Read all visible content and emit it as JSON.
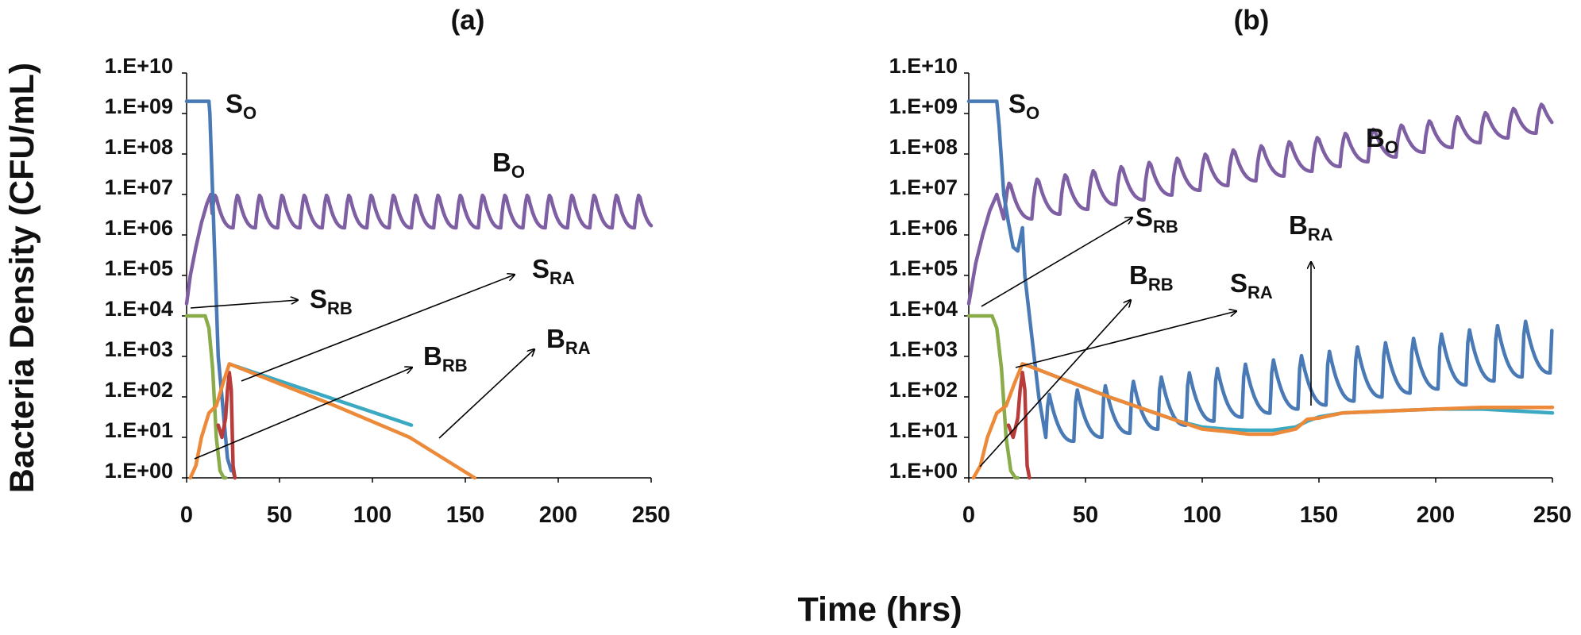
{
  "figure": {
    "ylabel": "Bacteria Density (CFU/mL)",
    "xlabel": "Time (hrs)"
  },
  "chart_data": [
    {
      "type": "line",
      "title": "(a)",
      "xlabel": "Time (hrs)",
      "ylabel": "Bacteria Density (CFU/mL)",
      "xlim": [
        0,
        250
      ],
      "ylim": [
        1,
        10000000000
      ],
      "yscale": "log",
      "xticks": [
        "0",
        "50",
        "100",
        "150",
        "200",
        "250"
      ],
      "yticks": [
        "1.E+00",
        "1.E+01",
        "1.E+02",
        "1.E+03",
        "1.E+04",
        "1.E+05",
        "1.E+06",
        "1.E+07",
        "1.E+08",
        "1.E+09",
        "1.E+10"
      ],
      "grid": false,
      "series_colors": {
        "SO": "#4a7ab5",
        "BO": "#7f5fa3",
        "SRB": "#8aab4a",
        "BRB": "#b83c3a",
        "SRA": "#3aa9c1",
        "BRA": "#ec8a3a"
      },
      "series": [
        {
          "id": "SO",
          "x": [
            0,
            12,
            12.5,
            14,
            17,
            21,
            22,
            24,
            25,
            26
          ],
          "y": [
            2000000000,
            2000000000,
            1000000000,
            10000000,
            1000,
            10,
            3,
            1.5,
            1.5,
            1
          ]
        },
        {
          "id": "BO",
          "x": [
            0,
            2,
            5,
            8,
            11,
            13
          ],
          "y": [
            20000,
            100000,
            500000,
            2000000,
            6000000,
            10000000
          ],
          "periodic": {
            "period": 12,
            "max": 10000000,
            "min": 1500000
          }
        },
        {
          "id": "SRB",
          "x": [
            0,
            10,
            12,
            14,
            16,
            18,
            20,
            21
          ],
          "y": [
            10000,
            10000,
            5000,
            500,
            10,
            1.5,
            1,
            1
          ]
        },
        {
          "id": "BRB",
          "x": [
            17,
            19,
            21,
            22,
            23,
            24,
            25,
            26
          ],
          "y": [
            20,
            10,
            30,
            150,
            400,
            150,
            2,
            1
          ]
        },
        {
          "id": "SRA",
          "x": [
            23,
            25,
            121
          ],
          "y": [
            650,
            600,
            20
          ]
        },
        {
          "id": "BRA",
          "x": [
            2,
            5,
            8,
            12,
            16,
            20,
            23,
            25,
            80,
            120,
            155
          ],
          "y": [
            1,
            2,
            10,
            40,
            60,
            250,
            650,
            600,
            60,
            10,
            1
          ]
        }
      ],
      "annotations": [
        {
          "label": "S",
          "sub": "O"
        },
        {
          "label": "B",
          "sub": "O"
        },
        {
          "label": "S",
          "sub": "RB"
        },
        {
          "label": "S",
          "sub": "RA"
        },
        {
          "label": "B",
          "sub": "RB"
        },
        {
          "label": "B",
          "sub": "RA"
        }
      ]
    },
    {
      "type": "line",
      "title": "(b)",
      "xlabel": "Time (hrs)",
      "ylabel": "Bacteria Density (CFU/mL)",
      "xlim": [
        0,
        250
      ],
      "ylim": [
        1,
        10000000000
      ],
      "yscale": "log",
      "xticks": [
        "0",
        "50",
        "100",
        "150",
        "200",
        "250"
      ],
      "yticks": [
        "1.E+00",
        "1.E+01",
        "1.E+02",
        "1.E+03",
        "1.E+04",
        "1.E+05",
        "1.E+06",
        "1.E+07",
        "1.E+08",
        "1.E+09",
        "1.E+10"
      ],
      "grid": false,
      "series_colors": {
        "SO": "#4a7ab5",
        "BO": "#7f5fa3",
        "SRB": "#8aab4a",
        "BRB": "#b83c3a",
        "SRA": "#3aa9c1",
        "BRA": "#ec8a3a"
      },
      "series": [
        {
          "id": "SO",
          "x": [
            0,
            12,
            13,
            15,
            17,
            19,
            21,
            22,
            23,
            24,
            26,
            28,
            30,
            33
          ],
          "y": [
            2000000000,
            2000000000,
            500000000,
            10000000,
            2000000,
            500000,
            400000,
            800000,
            1500000,
            100000,
            10000,
            1000,
            100,
            10
          ],
          "periodic": {
            "from": 33,
            "period": 12,
            "peak_start": 120,
            "peak_end": 10000,
            "trough_start": 8,
            "trough_end": 500
          }
        },
        {
          "id": "BO",
          "x": [
            0,
            3,
            6,
            9,
            12,
            15
          ],
          "y": [
            20000,
            200000,
            1000000,
            4000000,
            10000000,
            2500000
          ],
          "periodic": {
            "from": 15,
            "period": 12,
            "max_start": 20000000,
            "max_end": 2000000000,
            "min_start": 2500000,
            "min_end": 500000000
          }
        },
        {
          "id": "SRB",
          "x": [
            0,
            10,
            12,
            14,
            16,
            18,
            20,
            21
          ],
          "y": [
            10000,
            10000,
            5000,
            500,
            10,
            1.5,
            1,
            1
          ]
        },
        {
          "id": "BRB",
          "x": [
            17,
            19,
            21,
            22,
            23,
            24,
            25,
            26
          ],
          "y": [
            20,
            10,
            30,
            150,
            400,
            150,
            2,
            1
          ]
        },
        {
          "id": "SRA",
          "x": [
            23,
            25,
            60,
            90,
            100,
            110,
            120,
            130,
            140,
            145,
            150,
            160,
            180,
            200,
            220,
            250
          ],
          "y": [
            650,
            600,
            100,
            25,
            18,
            16,
            15,
            15,
            18,
            25,
            32,
            40,
            45,
            50,
            50,
            40
          ]
        },
        {
          "id": "BRA",
          "x": [
            2,
            5,
            8,
            12,
            16,
            20,
            23,
            25,
            60,
            90,
            100,
            110,
            120,
            130,
            140,
            145,
            150,
            160,
            180,
            200,
            220,
            250
          ],
          "y": [
            1,
            2,
            10,
            40,
            60,
            250,
            650,
            600,
            100,
            25,
            16,
            14,
            12,
            12,
            16,
            28,
            30,
            40,
            45,
            50,
            55,
            55
          ]
        }
      ],
      "annotations": [
        {
          "label": "S",
          "sub": "O"
        },
        {
          "label": "B",
          "sub": "O"
        },
        {
          "label": "S",
          "sub": "RB"
        },
        {
          "label": "B",
          "sub": "RA"
        },
        {
          "label": "B",
          "sub": "RB"
        },
        {
          "label": "S",
          "sub": "RA"
        }
      ]
    }
  ]
}
